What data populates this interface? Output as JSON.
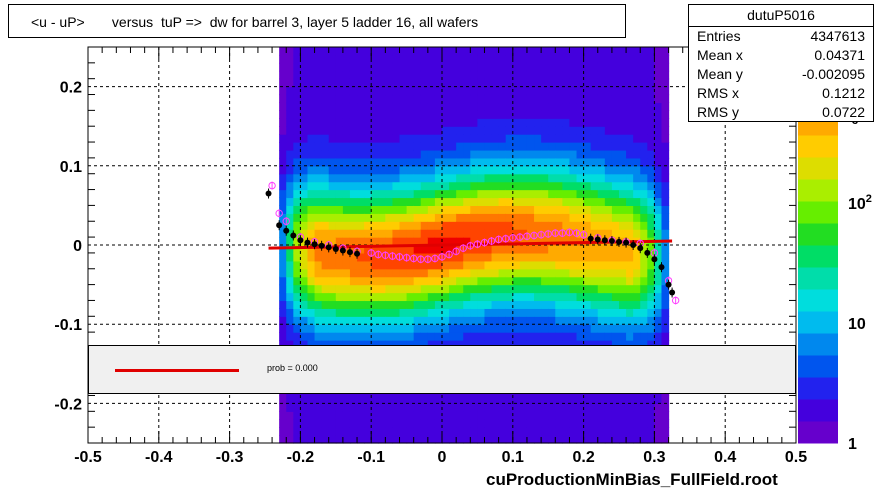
{
  "title": "<u - uP>       versus  tuP =>  dw for barrel 3, layer 5 ladder 16, all wafers",
  "footer": "cuProductionMinBias_FullField.root",
  "stats": {
    "name": "dutuP5016",
    "rows": [
      {
        "label": "Entries",
        "value": "4347613"
      },
      {
        "label": "Mean x",
        "value": "0.04371"
      },
      {
        "label": "Mean y",
        "value": "-0.002095"
      },
      {
        "label": "RMS x",
        "value": "0.1212"
      },
      {
        "label": "RMS y",
        "value": "0.0722"
      }
    ]
  },
  "legend": {
    "text": "prob = 0.000",
    "line_color": "#e00000"
  },
  "colors": {
    "profile_black": "#000000",
    "profile_magenta": "#ff40ff",
    "fit_red": "#e00000",
    "palette": [
      "#6600cc",
      "#4400dd",
      "#2222ee",
      "#0055ee",
      "#0088ee",
      "#00bbee",
      "#00dddd",
      "#00ddaa",
      "#00dd66",
      "#22dd22",
      "#66ee00",
      "#aaee00",
      "#dddd00",
      "#ffcc00",
      "#ffaa00",
      "#ff7700",
      "#ff4400",
      "#ee0000"
    ]
  },
  "chart_data": {
    "type": "heatmap",
    "xlim": [
      -0.5,
      0.5
    ],
    "ylim": [
      -0.25,
      0.25
    ],
    "x_ticks": [
      "-0.5",
      "-0.4",
      "-0.3",
      "-0.2",
      "-0.1",
      "0",
      "0.1",
      "0.2",
      "0.3",
      "0.4",
      "0.5"
    ],
    "y_ticks": [
      "-0.2",
      "-0.1",
      "0",
      "0.1",
      "0.2"
    ],
    "z_scale": "log",
    "z_range": [
      1,
      2000
    ],
    "z_ticks": [
      {
        "base": "10",
        "exp": "",
        "value": 10
      },
      {
        "base": "10",
        "exp": "2",
        "value": 100
      },
      {
        "base": "1",
        "exp": "",
        "value": 1
      }
    ],
    "z_top_fragment": "3",
    "grid": true,
    "heatmap_x_range": [
      -0.23,
      0.32
    ],
    "profile_black": {
      "x": [
        -0.245,
        -0.23,
        -0.22,
        -0.21,
        -0.2,
        -0.19,
        -0.18,
        -0.17,
        -0.16,
        -0.15,
        -0.14,
        -0.13,
        -0.12,
        0.21,
        0.22,
        0.23,
        0.24,
        0.25,
        0.26,
        0.27,
        0.28,
        0.29,
        0.3,
        0.31,
        0.32,
        0.325
      ],
      "y": [
        0.065,
        0.025,
        0.018,
        0.012,
        0.006,
        0.003,
        0.001,
        -0.001,
        -0.003,
        -0.005,
        -0.007,
        -0.009,
        -0.011,
        0.008,
        0.007,
        0.006,
        0.005,
        0.004,
        0.003,
        0.0,
        -0.004,
        -0.01,
        -0.018,
        -0.028,
        -0.05,
        -0.06
      ]
    },
    "profile_magenta": {
      "x": [
        -0.24,
        -0.23,
        -0.22,
        -0.2,
        -0.18,
        -0.16,
        -0.14,
        -0.12,
        -0.1,
        -0.09,
        -0.08,
        -0.07,
        -0.06,
        -0.05,
        -0.04,
        -0.03,
        -0.02,
        -0.01,
        0.0,
        0.01,
        0.02,
        0.03,
        0.04,
        0.05,
        0.06,
        0.07,
        0.08,
        0.09,
        0.1,
        0.11,
        0.12,
        0.13,
        0.14,
        0.15,
        0.16,
        0.17,
        0.18,
        0.19,
        0.2,
        0.22,
        0.24,
        0.26,
        0.28,
        0.3,
        0.32,
        0.33
      ],
      "y": [
        0.075,
        0.04,
        0.03,
        0.01,
        0.004,
        0.0,
        -0.004,
        -0.008,
        -0.01,
        -0.012,
        -0.013,
        -0.014,
        -0.015,
        -0.016,
        -0.017,
        -0.018,
        -0.018,
        -0.017,
        -0.015,
        -0.012,
        -0.008,
        -0.004,
        -0.001,
        0.001,
        0.003,
        0.005,
        0.007,
        0.008,
        0.009,
        0.01,
        0.011,
        0.012,
        0.013,
        0.014,
        0.015,
        0.015,
        0.016,
        0.015,
        0.013,
        0.009,
        0.006,
        0.004,
        0.002,
        -0.01,
        -0.045,
        -0.07
      ]
    },
    "fit_line": {
      "x": [
        -0.245,
        0.325
      ],
      "y": [
        -0.004,
        0.005
      ]
    }
  }
}
